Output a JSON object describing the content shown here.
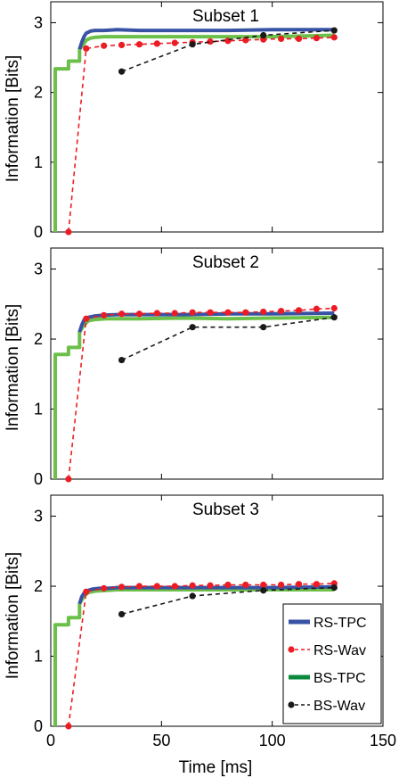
{
  "figure": {
    "ylabel": "Information [Bits]",
    "xlabel": "Time [ms]"
  },
  "legend": [
    {
      "label": "RS-TPC",
      "color": "#3953a4",
      "style": "solid",
      "marker": "none"
    },
    {
      "label": "RS-Wav",
      "color": "#ed1c24",
      "style": "dashed",
      "marker": "circle"
    },
    {
      "label": "BS-TPC",
      "color": "#0b8a3d",
      "style": "solid",
      "marker": "none"
    },
    {
      "label": "BS-Wav",
      "color": "#1a1a1a",
      "style": "dashed",
      "marker": "circle"
    }
  ],
  "chart_data": [
    {
      "type": "line",
      "title": "Subset 1",
      "xlim": [
        0,
        150
      ],
      "ylim": [
        0,
        3.3
      ],
      "xticks": [
        0,
        50,
        100,
        150
      ],
      "yticks": [
        0,
        1,
        2,
        3
      ],
      "xtick_labels_visible": false,
      "series": [
        {
          "name": "BS-TPC",
          "color": "#6cc04a",
          "width": 4,
          "style": "solid",
          "marker": "none",
          "x": [
            2,
            2,
            8,
            8,
            13,
            13,
            15,
            16,
            18,
            20,
            24,
            30,
            40,
            60,
            80,
            100,
            128
          ],
          "y": [
            0,
            2.34,
            2.34,
            2.45,
            2.45,
            2.62,
            2.7,
            2.75,
            2.78,
            2.79,
            2.8,
            2.8,
            2.8,
            2.8,
            2.8,
            2.8,
            2.82
          ]
        },
        {
          "name": "RS-TPC",
          "color": "#3953a4",
          "width": 4,
          "style": "solid",
          "marker": "none",
          "x": [
            13,
            14,
            15,
            16,
            18,
            20,
            24,
            30,
            40,
            60,
            80,
            100,
            128
          ],
          "y": [
            2.62,
            2.72,
            2.8,
            2.85,
            2.88,
            2.89,
            2.89,
            2.9,
            2.89,
            2.89,
            2.89,
            2.9,
            2.9
          ],
          "legend_label_index": 0
        },
        {
          "name": "RS-Wav",
          "color": "#ed1c24",
          "width": 1.6,
          "style": "dashed",
          "marker": "circle",
          "x": [
            8,
            16,
            24,
            32,
            40,
            48,
            56,
            64,
            72,
            80,
            88,
            96,
            104,
            112,
            120,
            128
          ],
          "y": [
            0,
            2.63,
            2.67,
            2.68,
            2.69,
            2.7,
            2.71,
            2.72,
            2.73,
            2.74,
            2.75,
            2.76,
            2.77,
            2.77,
            2.78,
            2.79
          ]
        },
        {
          "name": "BS-Wav",
          "color": "#1a1a1a",
          "width": 1.6,
          "style": "dashed",
          "marker": "circle",
          "x": [
            32,
            64,
            96,
            128
          ],
          "y": [
            2.3,
            2.69,
            2.82,
            2.89
          ]
        }
      ]
    },
    {
      "type": "line",
      "title": "Subset 2",
      "xlim": [
        0,
        150
      ],
      "ylim": [
        0,
        3.3
      ],
      "xticks": [
        0,
        50,
        100,
        150
      ],
      "yticks": [
        0,
        1,
        2,
        3
      ],
      "xtick_labels_visible": false,
      "series": [
        {
          "name": "BS-TPC",
          "color": "#6cc04a",
          "width": 4,
          "style": "solid",
          "marker": "none",
          "x": [
            2,
            2,
            8,
            8,
            13,
            13,
            15,
            17,
            20,
            25,
            30,
            40,
            60,
            80,
            100,
            128
          ],
          "y": [
            0,
            1.78,
            1.78,
            1.88,
            1.88,
            2.1,
            2.2,
            2.26,
            2.28,
            2.29,
            2.29,
            2.29,
            2.3,
            2.29,
            2.3,
            2.31
          ]
        },
        {
          "name": "RS-TPC",
          "color": "#3953a4",
          "width": 4,
          "style": "solid",
          "marker": "none",
          "x": [
            13,
            14,
            15,
            17,
            20,
            24,
            30,
            40,
            60,
            80,
            100,
            128
          ],
          "y": [
            2.1,
            2.2,
            2.27,
            2.31,
            2.33,
            2.34,
            2.35,
            2.35,
            2.35,
            2.36,
            2.36,
            2.37
          ]
        },
        {
          "name": "RS-Wav",
          "color": "#ed1c24",
          "width": 1.6,
          "style": "dashed",
          "marker": "circle",
          "x": [
            8,
            16,
            24,
            32,
            40,
            48,
            56,
            64,
            72,
            80,
            88,
            96,
            104,
            112,
            120,
            128
          ],
          "y": [
            0,
            2.29,
            2.34,
            2.36,
            2.36,
            2.37,
            2.37,
            2.38,
            2.38,
            2.38,
            2.38,
            2.39,
            2.4,
            2.41,
            2.43,
            2.44
          ]
        },
        {
          "name": "BS-Wav",
          "color": "#1a1a1a",
          "width": 1.6,
          "style": "dashed",
          "marker": "circle",
          "x": [
            32,
            64,
            96,
            128
          ],
          "y": [
            1.7,
            2.17,
            2.17,
            2.31
          ]
        }
      ]
    },
    {
      "type": "line",
      "title": "Subset 3",
      "xlim": [
        0,
        150
      ],
      "ylim": [
        0,
        3.3
      ],
      "xticks": [
        0,
        50,
        100,
        150
      ],
      "yticks": [
        0,
        1,
        2,
        3
      ],
      "xtick_labels_visible": true,
      "xlabel": "Time [ms]",
      "legend_position": "lower-right",
      "series": [
        {
          "name": "BS-TPC",
          "color": "#6cc04a",
          "width": 4,
          "style": "solid",
          "marker": "none",
          "x": [
            2,
            2,
            8,
            8,
            13,
            13,
            15,
            17,
            20,
            25,
            30,
            40,
            60,
            80,
            100,
            128
          ],
          "y": [
            0,
            1.45,
            1.45,
            1.55,
            1.55,
            1.75,
            1.86,
            1.91,
            1.93,
            1.94,
            1.95,
            1.95,
            1.95,
            1.95,
            1.95,
            1.95
          ]
        },
        {
          "name": "RS-TPC",
          "color": "#3953a4",
          "width": 4,
          "style": "solid",
          "marker": "none",
          "x": [
            13,
            14,
            15,
            17,
            19,
            22,
            26,
            30,
            40,
            60,
            80,
            100,
            128
          ],
          "y": [
            1.75,
            1.85,
            1.9,
            1.94,
            1.96,
            1.97,
            1.97,
            1.98,
            1.98,
            1.98,
            1.98,
            1.98,
            1.99
          ]
        },
        {
          "name": "RS-Wav",
          "color": "#ed1c24",
          "width": 1.6,
          "style": "dashed",
          "marker": "circle",
          "x": [
            8,
            16,
            24,
            32,
            40,
            48,
            56,
            64,
            72,
            80,
            88,
            96,
            104,
            112,
            120,
            128
          ],
          "y": [
            0,
            1.92,
            1.97,
            1.99,
            2.0,
            2.0,
            2.0,
            2.01,
            2.01,
            2.02,
            2.02,
            2.02,
            2.02,
            2.03,
            2.03,
            2.04
          ]
        },
        {
          "name": "BS-Wav",
          "color": "#1a1a1a",
          "width": 1.6,
          "style": "dashed",
          "marker": "circle",
          "x": [
            32,
            64,
            96,
            128
          ],
          "y": [
            1.6,
            1.86,
            1.94,
            1.98
          ]
        }
      ]
    }
  ]
}
